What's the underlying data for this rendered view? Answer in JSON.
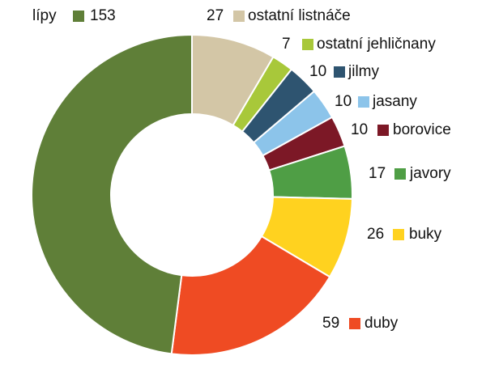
{
  "chart_data": {
    "type": "donut",
    "categories": [
      "ostatní listnáče",
      "ostatní jehličnany",
      "jilmy",
      "jasany",
      "borovice",
      "javory",
      "buky",
      "duby",
      "lípy"
    ],
    "values": [
      27,
      7,
      10,
      10,
      10,
      17,
      26,
      59,
      153
    ],
    "colors": [
      "#d3c6a6",
      "#a8c83a",
      "#2e5470",
      "#8cc4ea",
      "#7c1826",
      "#4f9e45",
      "#ffd21f",
      "#ef4b23",
      "#5f7f38"
    ]
  }
}
